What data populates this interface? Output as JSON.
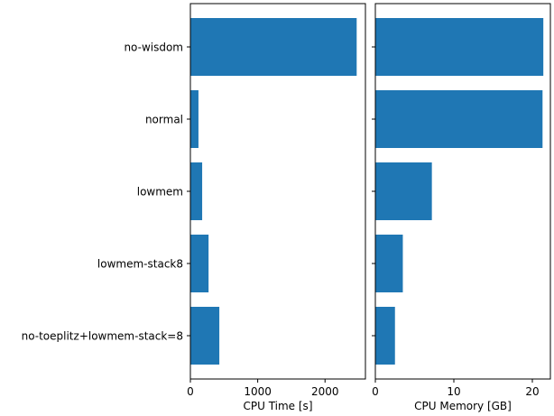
{
  "colors": {
    "bar": "#1f77b4",
    "axis": "#000000",
    "background": "#ffffff"
  },
  "chart_data": {
    "type": "bar",
    "orientation": "horizontal",
    "categories": [
      "no-wisdom ",
      "normal",
      "lowmem",
      "lowmem-stack8",
      "no-toeplitz+lowmem-stack=8"
    ],
    "panels": [
      {
        "xlabel": "CPU Time [s]",
        "xlim": [
          0,
          2600
        ],
        "xticks": [
          0,
          1000,
          2000
        ],
        "values": [
          2470,
          120,
          175,
          270,
          430
        ]
      },
      {
        "xlabel": "CPU Memory [GB]",
        "xlim": [
          0,
          22.3
        ],
        "xticks": [
          0,
          10,
          20
        ],
        "values": [
          21.4,
          21.3,
          7.2,
          3.5,
          2.5
        ]
      }
    ],
    "grid": false,
    "legend": "none"
  }
}
